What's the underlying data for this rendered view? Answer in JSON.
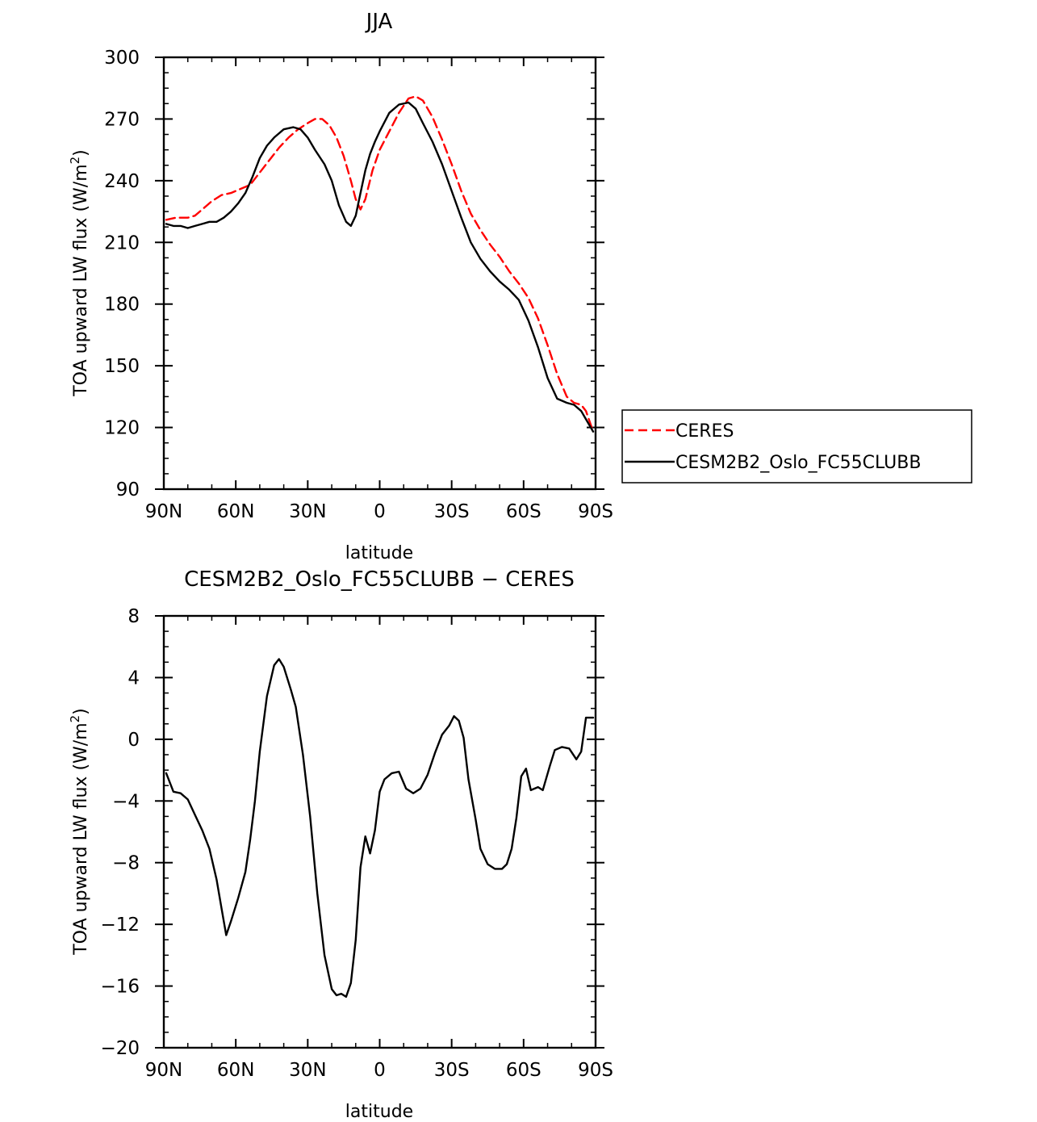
{
  "chart_data": [
    {
      "type": "line",
      "title": "JJA",
      "xlabel": "latitude",
      "ylabel": "TOA upward LW flux (W/m²)",
      "ylabel_prefix": "TOA upward LW flux (W/m",
      "ylabel_sup": "2",
      "ylabel_suffix": ")",
      "xlim": [
        90,
        -90
      ],
      "ylim": [
        90,
        300
      ],
      "x_ticks": [
        90,
        60,
        30,
        0,
        -30,
        -60,
        -90
      ],
      "x_tick_labels": [
        "90N",
        "60N",
        "30N",
        "0",
        "30S",
        "60S",
        "90S"
      ],
      "y_ticks": [
        90,
        120,
        150,
        180,
        210,
        240,
        270,
        300
      ],
      "y_tick_labels": [
        "90",
        "120",
        "150",
        "180",
        "210",
        "240",
        "270",
        "300"
      ],
      "legend_position": "right",
      "series": [
        {
          "name": "CERES",
          "color": "#ff0000",
          "style": "dashed",
          "x": [
            89,
            85,
            80,
            77,
            74,
            70,
            66,
            62,
            58,
            54,
            50,
            46,
            42,
            38,
            34,
            30,
            27,
            24,
            21,
            18,
            15,
            12,
            10,
            8,
            6,
            3,
            0,
            -4,
            -8,
            -12,
            -15,
            -18,
            -22,
            -26,
            -30,
            -34,
            -38,
            -42,
            -46,
            -50,
            -54,
            -58,
            -62,
            -66,
            -70,
            -74,
            -78,
            -81,
            -84,
            -86,
            -89
          ],
          "values": [
            221,
            222,
            222,
            223,
            226,
            230,
            233,
            234,
            236,
            238,
            244,
            250,
            256,
            261,
            265,
            268,
            270,
            270,
            267,
            261,
            252,
            240,
            231,
            226,
            231,
            245,
            255,
            264,
            273,
            280,
            281,
            279,
            271,
            260,
            248,
            235,
            224,
            216,
            209,
            203,
            196,
            190,
            183,
            173,
            160,
            146,
            135,
            132,
            131,
            128,
            118
          ]
        },
        {
          "name": "CESM2B2_Oslo_FC55CLUBB",
          "color": "#000000",
          "style": "solid",
          "x": [
            89,
            86,
            83,
            80,
            77,
            74,
            71,
            68,
            65,
            62,
            59,
            56,
            53,
            50,
            47,
            44,
            40,
            36,
            33,
            30,
            27,
            23,
            20,
            17,
            14,
            12,
            10,
            8,
            6,
            4,
            2,
            0,
            -4,
            -8,
            -12,
            -15,
            -18,
            -22,
            -26,
            -30,
            -34,
            -38,
            -42,
            -46,
            -50,
            -54,
            -58,
            -62,
            -66,
            -70,
            -74,
            -78,
            -81,
            -84,
            -86,
            -89
          ],
          "values": [
            219,
            218,
            218,
            217,
            218,
            219,
            220,
            220,
            222,
            225,
            229,
            234,
            242,
            251,
            257,
            261,
            265,
            266,
            265,
            261,
            255,
            248,
            240,
            228,
            220,
            218,
            223,
            234,
            245,
            253,
            259,
            264,
            273,
            277,
            278,
            275,
            268,
            259,
            248,
            235,
            222,
            210,
            202,
            196,
            191,
            187,
            182,
            172,
            159,
            144,
            134,
            132,
            131,
            128,
            124,
            118
          ]
        }
      ]
    },
    {
      "type": "line",
      "title": "CESM2B2_Oslo_FC55CLUBB − CERES",
      "xlabel": "latitude",
      "ylabel": "TOA upward LW flux (W/m²)",
      "ylabel_prefix": "TOA upward LW flux (W/m",
      "ylabel_sup": "2",
      "ylabel_suffix": ")",
      "xlim": [
        90,
        -90
      ],
      "ylim": [
        -20,
        8
      ],
      "x_ticks": [
        90,
        60,
        30,
        0,
        -30,
        -60,
        -90
      ],
      "x_tick_labels": [
        "90N",
        "60N",
        "30N",
        "0",
        "30S",
        "60S",
        "90S"
      ],
      "y_ticks": [
        -20,
        -16,
        -12,
        -8,
        -4,
        0,
        4,
        8
      ],
      "y_tick_labels": [
        "−20",
        "−16",
        "−12",
        "−8",
        "−4",
        "0",
        "4",
        "8"
      ],
      "series": [
        {
          "color": "#000000",
          "style": "solid",
          "x": [
            89,
            86,
            83,
            80,
            77,
            74,
            71,
            68,
            66,
            64,
            62,
            59,
            56,
            54,
            52,
            50,
            47,
            44,
            42,
            40,
            37,
            35,
            32,
            29,
            26,
            23,
            20,
            18,
            16,
            14,
            12,
            10,
            8,
            6,
            4,
            2,
            0,
            -2,
            -5,
            -8,
            -11,
            -14,
            -17,
            -20,
            -23,
            -26,
            -29,
            -31,
            -33,
            -35,
            -37,
            -40,
            -42,
            -45,
            -48,
            -51,
            -53,
            -55,
            -57,
            -59,
            -61,
            -63,
            -66,
            -68,
            -71,
            -73,
            -76,
            -79,
            -82,
            -84,
            -86,
            -89
          ],
          "values": [
            -2.2,
            -3.4,
            -3.5,
            -3.9,
            -4.9,
            -5.9,
            -7.1,
            -9.1,
            -10.9,
            -12.7,
            -11.8,
            -10.3,
            -8.6,
            -6.5,
            -4.0,
            -0.8,
            2.8,
            4.8,
            5.2,
            4.7,
            3.2,
            2.1,
            -1.0,
            -5.0,
            -10.0,
            -14.0,
            -16.2,
            -16.6,
            -16.5,
            -16.7,
            -15.8,
            -13.0,
            -8.3,
            -6.3,
            -7.4,
            -5.9,
            -3.4,
            -2.6,
            -2.2,
            -2.1,
            -3.2,
            -3.5,
            -3.2,
            -2.3,
            -0.9,
            0.3,
            0.9,
            1.5,
            1.2,
            0.1,
            -2.6,
            -5.2,
            -7.1,
            -8.1,
            -8.4,
            -8.4,
            -8.1,
            -7.1,
            -5.1,
            -2.4,
            -1.9,
            -3.3,
            -3.1,
            -3.3,
            -1.7,
            -0.7,
            -0.5,
            -0.6,
            -1.3,
            -0.8,
            1.4,
            1.4
          ]
        }
      ]
    }
  ]
}
